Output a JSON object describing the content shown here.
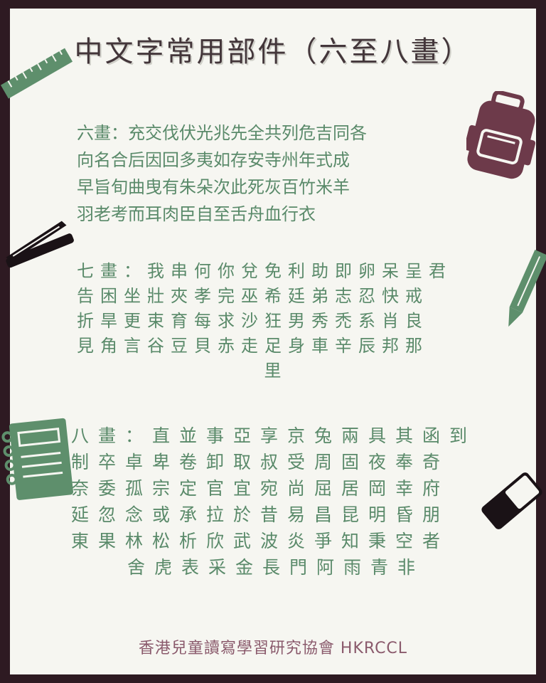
{
  "title": "中文字常用部件（六至八畫）",
  "sections": {
    "six": {
      "lines": [
        "六畫：充交伐伏光兆先全共列危吉同各",
        "向名合后因回多夷如存安寺州年式成",
        "早旨旬曲曳有朱朵次此死灰百竹米羊",
        "羽老考而耳肉臣自至舌舟血行衣"
      ]
    },
    "seven": {
      "lines": [
        "七畫：我串何你兌免利助即卵呆呈君",
        "告困坐壯夾孝完巫希廷弟志忍快戒",
        "折旱更束育每求沙狂男秀禿系肖良",
        "見角言谷豆貝赤走足身車辛辰邦那",
        "里"
      ]
    },
    "eight": {
      "lines": [
        "八畫：直並事亞享京兔兩具其函到",
        "制卒卓卑卷卸取叔受周固夜奉奇",
        "奈委孤宗定官宜宛尚屈居岡幸府",
        "延忽念或承拉於昔易昌昆明昏朋",
        "東果林松析欣武波炎爭知秉空者",
        "舍虎表采金長門阿雨青非"
      ]
    }
  },
  "footer": "香港兒童讀寫學習研究協會 HKRCCL",
  "colors": {
    "frame": "#2e1a22",
    "paper": "#f6f6f1",
    "title": "#43363a",
    "body_text": "#5a8a6a",
    "footer": "#8a5a6c",
    "accent_green": "#5e8f6c",
    "accent_plum": "#6d3a4a"
  },
  "icons": [
    "ruler-icon",
    "backpack-icon",
    "stapler-icon",
    "pencil-icon",
    "notebook-icon",
    "eraser-icon"
  ]
}
